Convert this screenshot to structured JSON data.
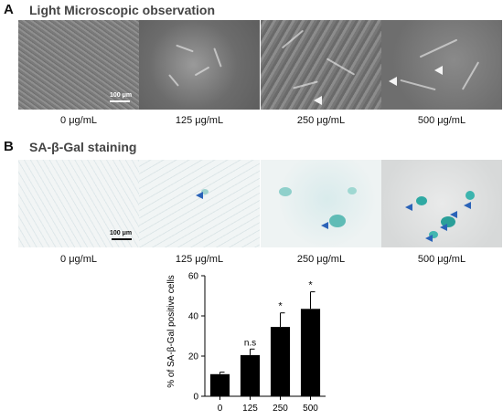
{
  "panel_a": {
    "letter": "A",
    "title": "Light Microscopic observation",
    "scale_bar": "100 μm",
    "images": [
      {
        "caption": "0 μg/mL"
      },
      {
        "caption": "125 μg/mL"
      },
      {
        "caption": "250 μg/mL"
      },
      {
        "caption": "500 μg/mL"
      }
    ]
  },
  "panel_b": {
    "letter": "B",
    "title": "SA-β-Gal staining",
    "scale_bar": "100 μm",
    "images": [
      {
        "caption": "0 μg/mL"
      },
      {
        "caption": "125 μg/mL"
      },
      {
        "caption": "250 μg/mL"
      },
      {
        "caption": "500 μg/mL"
      }
    ]
  },
  "colors": {
    "arrow_blue": "#2b63b8",
    "stain_teal": "#3aa9a5",
    "bar": "#000000"
  },
  "chart_data": {
    "type": "bar",
    "categories": [
      "0",
      "125",
      "250",
      "500"
    ],
    "values": [
      11,
      20.5,
      34.5,
      43.5
    ],
    "errors": [
      1,
      3,
      7,
      8.5
    ],
    "annotations": [
      "",
      "n.s",
      "*",
      "*"
    ],
    "ylabel": "% of SA-β-Gal positive cells",
    "xlabel": "",
    "ylim": [
      0,
      60
    ],
    "yticks": [
      0,
      20,
      40,
      60
    ],
    "grid": false
  }
}
